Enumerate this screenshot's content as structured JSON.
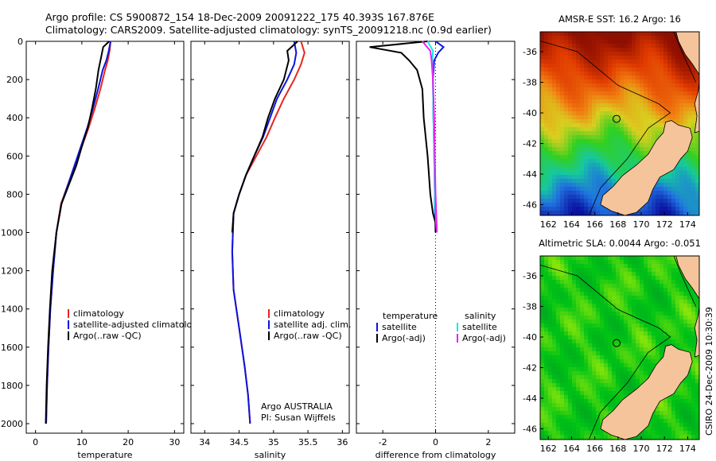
{
  "header": {
    "line1": "Argo profile: CS 5900872_154 18-Dec-2009 20091222_175 40.393S 167.876E",
    "line2": "Climatology: CARS2009. Satellite-adjusted climatology: synTS_20091218.nc (0.9d earlier)"
  },
  "credit": "CSIRO 24-Dec-2009 10:30:39",
  "colors": {
    "red": "#e8261c",
    "blue": "#0a14e0",
    "black": "#000000",
    "cyan": "#17e8e8",
    "magenta": "#f01cf0"
  },
  "chart_data": [
    {
      "type": "line",
      "name": "temperature-profile",
      "xlabel": "temperature",
      "xlim": [
        -2,
        32
      ],
      "ylim": [
        2050,
        0
      ],
      "xticks": [
        0,
        10,
        20,
        30
      ],
      "yticks": [
        0,
        200,
        400,
        600,
        800,
        1000,
        1200,
        1400,
        1600,
        1800,
        2000
      ],
      "legend": [
        "climatology",
        "satellite-adjusted climatology",
        "Argo(..raw -QC)"
      ],
      "series": [
        {
          "name": "climatology",
          "color": "#e8261c",
          "x": [
            16.2,
            16.0,
            15.6,
            15.0,
            14.0,
            12.8,
            11.5,
            10.0,
            8.5,
            7.0,
            5.5,
            4.5,
            3.8,
            3.2,
            2.8,
            2.5,
            2.3
          ],
          "y": [
            0,
            50,
            100,
            150,
            250,
            350,
            450,
            550,
            650,
            750,
            850,
            1000,
            1200,
            1400,
            1600,
            1800,
            2000
          ]
        },
        {
          "name": "satellite-adjusted climatology",
          "color": "#0a14e0",
          "x": [
            16.2,
            15.8,
            15.3,
            14.5,
            13.5,
            12.4,
            11.2,
            9.8,
            8.4,
            7.0,
            5.6,
            4.5,
            3.8,
            3.2,
            2.8,
            2.5,
            2.3
          ],
          "y": [
            0,
            50,
            100,
            150,
            250,
            350,
            450,
            550,
            650,
            750,
            850,
            1000,
            1200,
            1400,
            1600,
            1800,
            2000
          ]
        },
        {
          "name": "Argo(..raw -QC)",
          "color": "#000000",
          "x": [
            15.9,
            14.6,
            14.2,
            13.6,
            13.0,
            12.2,
            11.3,
            10.0,
            8.8,
            7.2,
            5.6,
            4.5,
            3.6,
            3.1,
            2.7,
            2.4,
            2.2
          ],
          "y": [
            0,
            30,
            80,
            150,
            250,
            350,
            450,
            550,
            650,
            750,
            850,
            1000,
            1200,
            1400,
            1600,
            1800,
            2000
          ]
        }
      ]
    },
    {
      "type": "line",
      "name": "salinity-profile",
      "xlabel": "salinity",
      "xlim": [
        33.8,
        36.1
      ],
      "ylim": [
        2050,
        0
      ],
      "xticks": [
        34,
        34.5,
        35,
        35.5,
        36
      ],
      "legend": [
        "climatology",
        "satellite adj. clim.",
        "Argo(..raw -QC)"
      ],
      "annotation": [
        "Argo AUSTRALIA",
        "PI: Susan Wijffels"
      ],
      "series": [
        {
          "name": "climatology",
          "color": "#e8261c",
          "x": [
            35.4,
            35.45,
            35.4,
            35.3,
            35.15,
            35.02,
            34.9,
            34.75,
            34.6,
            34.5,
            34.42,
            34.4,
            34.42,
            34.5,
            34.58,
            34.63,
            34.66
          ],
          "y": [
            0,
            60,
            120,
            200,
            300,
            400,
            500,
            600,
            700,
            800,
            900,
            1100,
            1300,
            1500,
            1700,
            1850,
            2000
          ]
        },
        {
          "name": "satellite adj. clim.",
          "color": "#0a14e0",
          "x": [
            35.3,
            35.33,
            35.3,
            35.2,
            35.05,
            34.95,
            34.85,
            34.72,
            34.6,
            34.5,
            34.42,
            34.4,
            34.42,
            34.5,
            34.58,
            34.63,
            34.66
          ],
          "y": [
            0,
            60,
            120,
            200,
            300,
            400,
            500,
            600,
            700,
            800,
            900,
            1100,
            1300,
            1500,
            1700,
            1850,
            2000
          ]
        },
        {
          "name": "Argo(..raw -QC)",
          "color": "#000000",
          "x": [
            35.35,
            35.2,
            35.22,
            35.15,
            35.02,
            34.92,
            34.84,
            34.72,
            34.6,
            34.5,
            34.42,
            34.4
          ],
          "y": [
            0,
            50,
            100,
            200,
            300,
            400,
            500,
            600,
            700,
            800,
            900,
            1000
          ]
        }
      ]
    },
    {
      "type": "line",
      "name": "difference-profile",
      "xlabel": "difference from climatology",
      "xlim": [
        -3,
        3
      ],
      "ylim": [
        2050,
        0
      ],
      "xticks": [
        -2,
        0,
        2
      ],
      "legend_columns": [
        {
          "heading": "temperature",
          "items": [
            "satellite",
            "Argo(-adj)"
          ]
        },
        {
          "heading": "salinity",
          "items": [
            "satellite",
            "Argo(-adj)"
          ]
        }
      ],
      "series": [
        {
          "name": "temperature satellite",
          "color": "#0a14e0",
          "x": [
            0,
            0.3,
            0.1,
            -0.05,
            -0.1,
            -0.08,
            -0.05,
            -0.03,
            -0.02,
            -0.01,
            0
          ],
          "y": [
            0,
            30,
            60,
            100,
            200,
            400,
            600,
            800,
            900,
            950,
            1000
          ]
        },
        {
          "name": "temperature Argo(-adj)",
          "color": "#000000",
          "x": [
            -0.3,
            -2.5,
            -1.3,
            -1.0,
            -0.7,
            -0.5,
            -0.45,
            -0.3,
            -0.2,
            -0.1,
            0,
            0
          ],
          "y": [
            0,
            30,
            60,
            100,
            150,
            250,
            400,
            600,
            800,
            900,
            950,
            1000
          ]
        },
        {
          "name": "salinity satellite",
          "color": "#17e8e8",
          "x": [
            -0.3,
            -0.1,
            -0.12,
            -0.1,
            -0.08,
            -0.05,
            -0.03,
            0.02,
            0.05
          ],
          "y": [
            0,
            50,
            100,
            200,
            400,
            600,
            800,
            950,
            1000
          ]
        },
        {
          "name": "salinity Argo(-adj)",
          "color": "#f01cf0",
          "x": [
            -0.5,
            -0.2,
            -0.15,
            -0.1,
            -0.05,
            -0.03,
            0,
            0.05
          ],
          "y": [
            0,
            50,
            100,
            200,
            400,
            600,
            800,
            1000
          ]
        }
      ]
    },
    {
      "type": "heatmap",
      "name": "sst-map",
      "title": "AMSR-E SST: 16.2 Argo: 16",
      "xticks": [
        162,
        164,
        166,
        168,
        170,
        172,
        174
      ],
      "yticks": [
        -36,
        -38,
        -40,
        -42,
        -44,
        -46
      ],
      "xlim": [
        161.3,
        175.0
      ],
      "ylim": [
        -46.7,
        -34.7
      ],
      "marker": {
        "lon": 167.876,
        "lat": -40.393
      }
    },
    {
      "type": "heatmap",
      "name": "sla-map",
      "title": "Altimetric SLA: 0.0044 Argo: -0.051",
      "xticks": [
        162,
        164,
        166,
        168,
        170,
        172,
        174
      ],
      "yticks": [
        -36,
        -38,
        -40,
        -42,
        -44,
        -46
      ],
      "xlim": [
        161.3,
        175.0
      ],
      "ylim": [
        -46.7,
        -34.7
      ],
      "marker": {
        "lon": 167.876,
        "lat": -40.393
      }
    }
  ]
}
